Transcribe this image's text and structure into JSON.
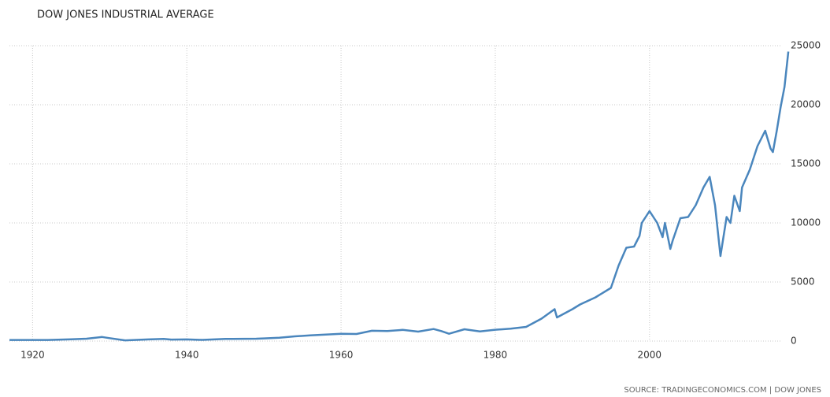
{
  "chart_data": {
    "type": "line",
    "title": "DOW JONES INDUSTRIAL AVERAGE",
    "source": "SOURCE: TRADINGECONOMICS.COM | DOW JONES",
    "xlim": [
      1917,
      2018.3
    ],
    "xticks": [
      1920,
      1940,
      1960,
      1980,
      2000
    ],
    "ylim": [
      0,
      25000
    ],
    "yticks": [
      0,
      5000,
      10000,
      15000,
      20000,
      25000
    ],
    "grid": true,
    "series": [
      {
        "name": "Dow Jones Industrial Average",
        "color": "#4a86bd",
        "x": [
          1917,
          1920,
          1922,
          1925,
          1927,
          1929,
          1930,
          1932,
          1935,
          1937,
          1938,
          1940,
          1942,
          1945,
          1946,
          1949,
          1950,
          1952,
          1954,
          1956,
          1958,
          1960,
          1962,
          1964,
          1966,
          1968,
          1970,
          1972,
          1973,
          1974,
          1976,
          1978,
          1980,
          1982,
          1984,
          1986,
          1987.7,
          1988,
          1990,
          1991,
          1993,
          1995,
          1996,
          1997,
          1998,
          1998.7,
          1999,
          2000,
          2001,
          2001.7,
          2002,
          2002.7,
          2003,
          2004,
          2005,
          2006,
          2007,
          2007.8,
          2008.5,
          2009.2,
          2010,
          2010.5,
          2011,
          2011.7,
          2012,
          2013,
          2014,
          2015,
          2015.7,
          2016,
          2016.5,
          2017,
          2017.5,
          2018
        ],
        "values": [
          90,
          90,
          95,
          150,
          200,
          350,
          250,
          60,
          140,
          180,
          130,
          140,
          100,
          180,
          180,
          200,
          230,
          280,
          400,
          480,
          550,
          620,
          600,
          870,
          850,
          950,
          800,
          1020,
          850,
          620,
          1000,
          820,
          960,
          1050,
          1200,
          1900,
          2700,
          2000,
          2700,
          3100,
          3700,
          4500,
          6400,
          7900,
          8000,
          8900,
          10000,
          11000,
          10000,
          8800,
          10000,
          7800,
          8500,
          10400,
          10500,
          11500,
          13000,
          13900,
          11500,
          7200,
          10500,
          10000,
          12300,
          11000,
          13000,
          14500,
          16500,
          17800,
          16300,
          16000,
          17800,
          19800,
          21500,
          24500
        ]
      }
    ]
  }
}
